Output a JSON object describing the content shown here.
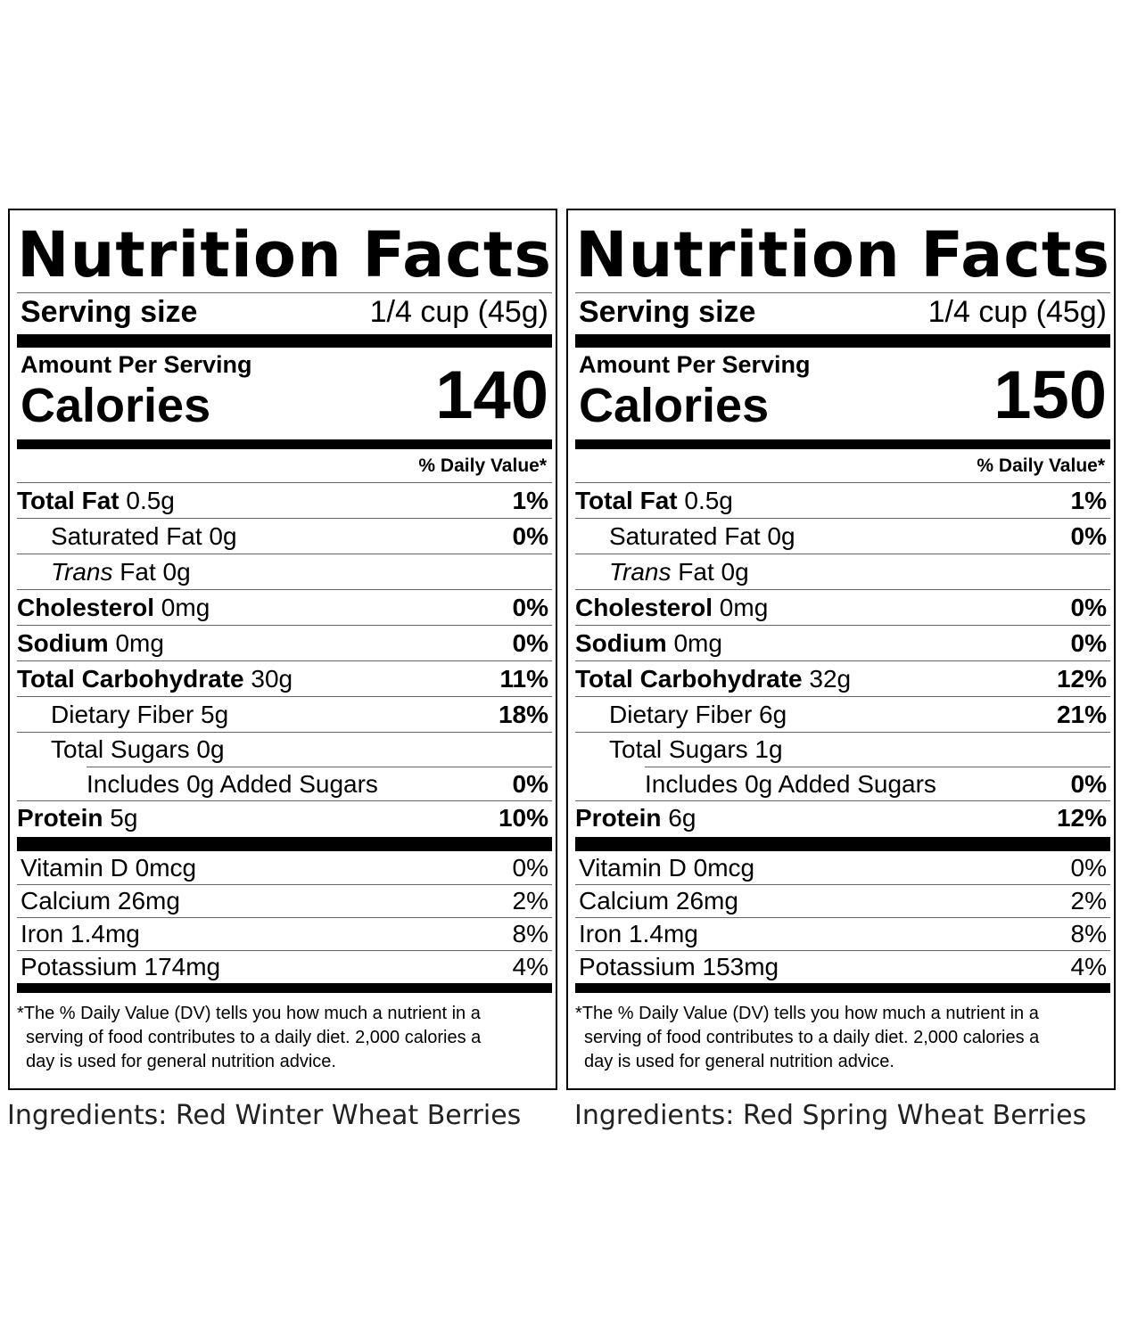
{
  "labels": [
    {
      "title_word1": "Nutrition",
      "title_word2": "Facts",
      "serving_label": "Serving size",
      "serving_value": "1/4 cup (45g)",
      "amount_per_serving": "Amount Per Serving",
      "calories_label": "Calories",
      "calories_value": "140",
      "dv_header": "% Daily Value*",
      "nutrients": [
        {
          "name": "Total Fat",
          "amount": " 0.5g",
          "dv": "1%"
        },
        {
          "name": "Saturated Fat 0g",
          "amount": "",
          "dv": "0%"
        },
        {
          "name": "Trans",
          "amount": " Fat 0g",
          "dv": ""
        },
        {
          "name": "Cholesterol",
          "amount": " 0mg",
          "dv": "0%"
        },
        {
          "name": "Sodium",
          "amount": " 0mg",
          "dv": "0%"
        },
        {
          "name": "Total Carbohydrate",
          "amount": " 30g",
          "dv": "11%"
        },
        {
          "name": "Dietary Fiber 5g",
          "amount": "",
          "dv": "18%"
        },
        {
          "name": "Total Sugars 0g",
          "amount": "",
          "dv": ""
        },
        {
          "name": "Includes 0g Added Sugars",
          "amount": "",
          "dv": "0%"
        },
        {
          "name": "Protein",
          "amount": " 5g",
          "dv": "10%"
        }
      ],
      "vitamins": [
        {
          "name": "Vitamin D 0mcg",
          "dv": "0%"
        },
        {
          "name": "Calcium 26mg",
          "dv": "2%"
        },
        {
          "name": "Iron 1.4mg",
          "dv": "8%"
        },
        {
          "name": "Potassium 174mg",
          "dv": "4%"
        }
      ],
      "footnote": [
        "*The % Daily Value (DV) tells you how much a nutrient in a",
        "serving of food contributes to a daily diet. 2,000 calories a",
        "day is used for general nutrition advice."
      ],
      "ingredients": "Ingredients: Red Winter Wheat Berries"
    },
    {
      "title_word1": "Nutrition",
      "title_word2": "Facts",
      "serving_label": "Serving size",
      "serving_value": "1/4 cup (45g)",
      "amount_per_serving": "Amount Per Serving",
      "calories_label": "Calories",
      "calories_value": "150",
      "dv_header": "% Daily Value*",
      "nutrients": [
        {
          "name": "Total Fat",
          "amount": " 0.5g",
          "dv": "1%"
        },
        {
          "name": "Saturated Fat 0g",
          "amount": "",
          "dv": "0%"
        },
        {
          "name": "Trans",
          "amount": " Fat 0g",
          "dv": ""
        },
        {
          "name": "Cholesterol",
          "amount": " 0mg",
          "dv": "0%"
        },
        {
          "name": "Sodium",
          "amount": " 0mg",
          "dv": "0%"
        },
        {
          "name": "Total Carbohydrate",
          "amount": " 32g",
          "dv": "12%"
        },
        {
          "name": "Dietary Fiber 6g",
          "amount": "",
          "dv": "21%"
        },
        {
          "name": "Total Sugars 1g",
          "amount": "",
          "dv": ""
        },
        {
          "name": "Includes 0g Added Sugars",
          "amount": "",
          "dv": "0%"
        },
        {
          "name": "Protein",
          "amount": " 6g",
          "dv": "12%"
        }
      ],
      "vitamins": [
        {
          "name": "Vitamin D 0mcg",
          "dv": "0%"
        },
        {
          "name": "Calcium 26mg",
          "dv": "2%"
        },
        {
          "name": "Iron 1.4mg",
          "dv": "8%"
        },
        {
          "name": "Potassium 153mg",
          "dv": "4%"
        }
      ],
      "footnote": [
        "*The % Daily Value (DV) tells you how much a nutrient in a",
        "serving of food contributes to a daily diet. 2,000 calories a",
        "day is used for general nutrition advice."
      ],
      "ingredients": "Ingredients: Red Spring Wheat Berries"
    }
  ]
}
